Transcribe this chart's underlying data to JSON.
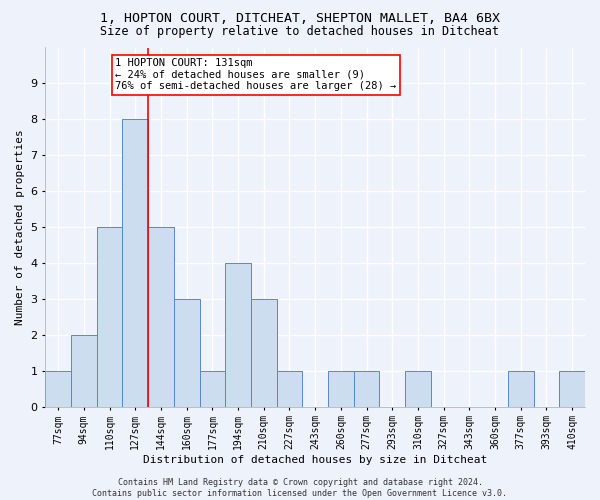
{
  "title1": "1, HOPTON COURT, DITCHEAT, SHEPTON MALLET, BA4 6BX",
  "title2": "Size of property relative to detached houses in Ditcheat",
  "xlabel": "Distribution of detached houses by size in Ditcheat",
  "ylabel": "Number of detached properties",
  "footnote": "Contains HM Land Registry data © Crown copyright and database right 2024.\nContains public sector information licensed under the Open Government Licence v3.0.",
  "bin_labels": [
    "77sqm",
    "94sqm",
    "110sqm",
    "127sqm",
    "144sqm",
    "160sqm",
    "177sqm",
    "194sqm",
    "210sqm",
    "227sqm",
    "243sqm",
    "260sqm",
    "277sqm",
    "293sqm",
    "310sqm",
    "327sqm",
    "343sqm",
    "360sqm",
    "377sqm",
    "393sqm",
    "410sqm"
  ],
  "bar_values": [
    1,
    2,
    5,
    8,
    5,
    3,
    1,
    4,
    3,
    1,
    0,
    1,
    1,
    0,
    1,
    0,
    0,
    0,
    1,
    0,
    1
  ],
  "bar_color": "#ccddf0",
  "bar_edge_color": "#5588cc",
  "annotation_text": "1 HOPTON COURT: 131sqm\n← 24% of detached houses are smaller (9)\n76% of semi-detached houses are larger (28) →",
  "annotation_box_color": "white",
  "annotation_box_edge_color": "red",
  "ylim": [
    0,
    10
  ],
  "yticks": [
    0,
    1,
    2,
    3,
    4,
    5,
    6,
    7,
    8,
    9,
    10
  ],
  "background_color": "#eef2fa",
  "grid_color": "white",
  "title1_fontsize": 9.5,
  "title2_fontsize": 8.5,
  "xlabel_fontsize": 8,
  "ylabel_fontsize": 8,
  "annotation_fontsize": 7.5
}
